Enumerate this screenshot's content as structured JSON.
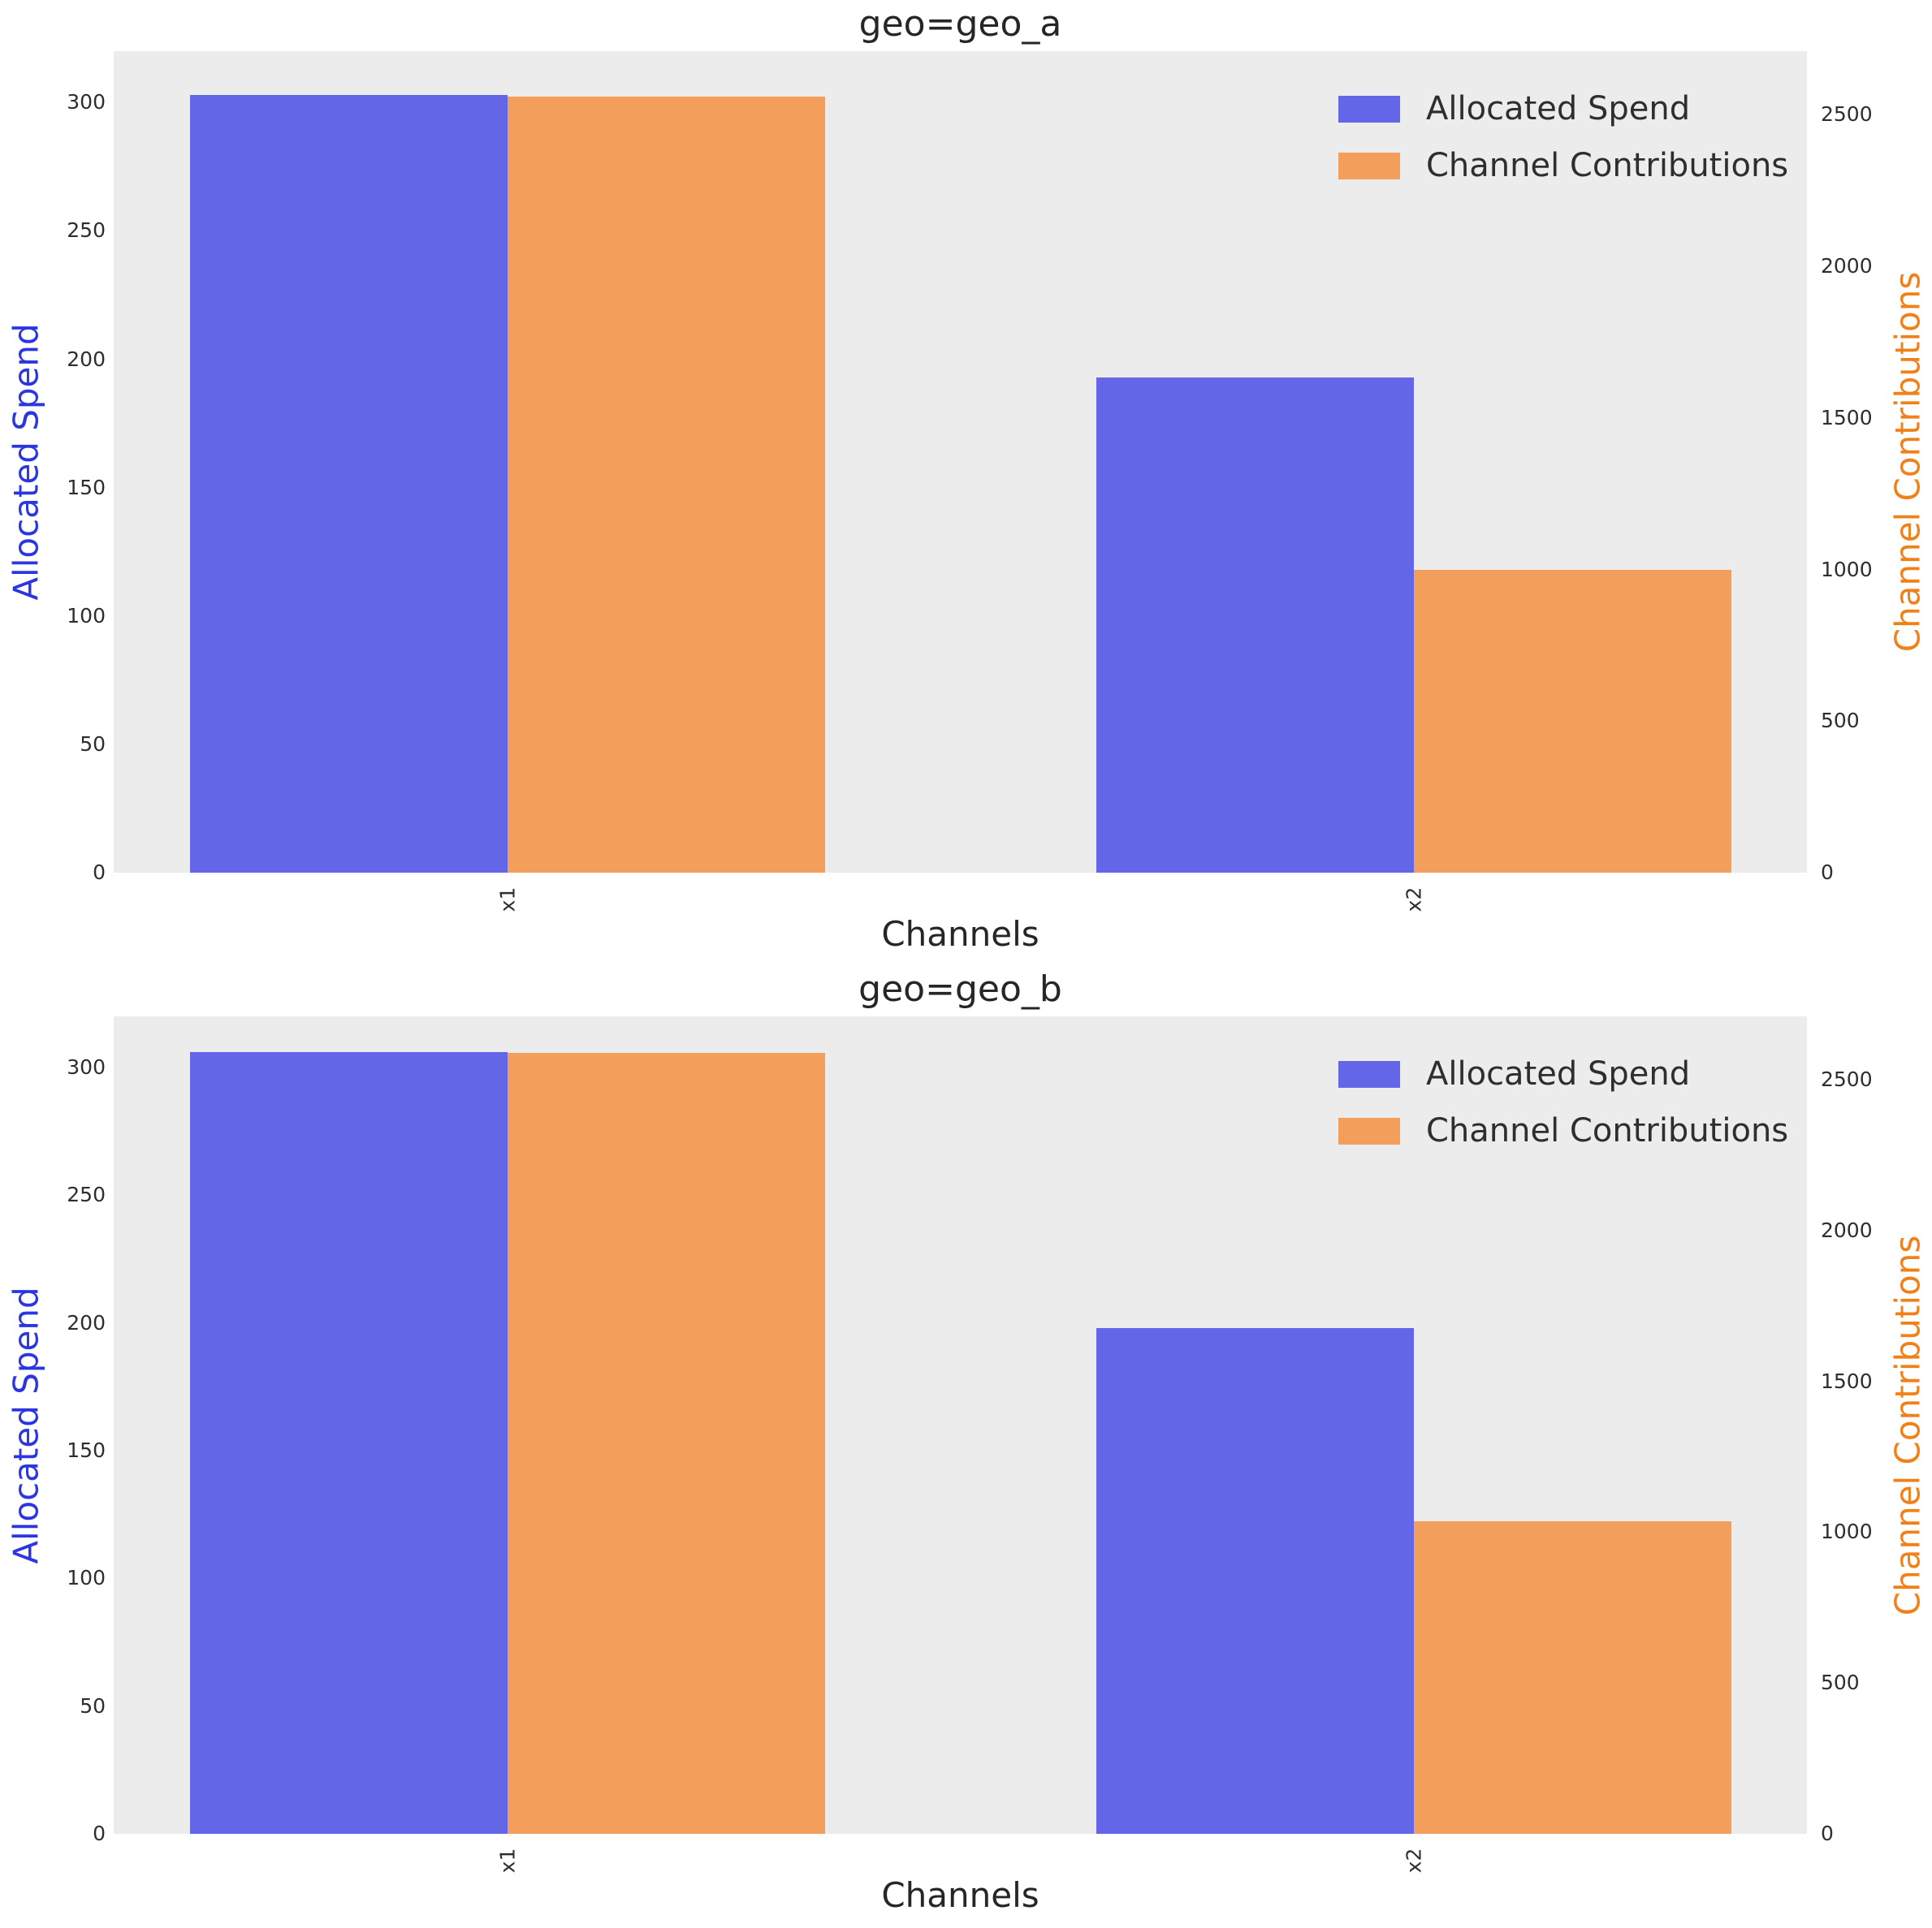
{
  "style": {
    "bar_spend_color": "#6266e7",
    "bar_contrib_color": "#f49e5c",
    "left_axis_label_color": "#2b36e0",
    "right_axis_label_color": "#f28019",
    "plot_background": "#ececec",
    "text_color": "#262626",
    "tick_color": "#2e2e2e"
  },
  "chart_data": [
    {
      "type": "bar",
      "title": "geo=geo_a",
      "xlabel": "Channels",
      "categories": [
        "x1",
        "x2"
      ],
      "series": [
        {
          "name": "Allocated Spend",
          "axis": "left",
          "values": [
            303,
            193
          ]
        },
        {
          "name": "Channel Contributions",
          "axis": "right",
          "values": [
            2560,
            1000
          ]
        }
      ],
      "left_ylabel": "Allocated Spend",
      "right_ylabel": "Channel Contributions",
      "left_ylim": [
        0,
        320
      ],
      "right_ylim": [
        0,
        2710
      ],
      "left_ticks": [
        0,
        50,
        100,
        150,
        200,
        250,
        300
      ],
      "right_ticks": [
        0,
        500,
        1000,
        1500,
        2000,
        2500
      ],
      "legend": [
        "Allocated Spend",
        "Channel Contributions"
      ],
      "legend_position": "upper right",
      "grid": false
    },
    {
      "type": "bar",
      "title": "geo=geo_b",
      "xlabel": "Channels",
      "categories": [
        "x1",
        "x2"
      ],
      "series": [
        {
          "name": "Allocated Spend",
          "axis": "left",
          "values": [
            306,
            198
          ]
        },
        {
          "name": "Channel Contributions",
          "axis": "right",
          "values": [
            2590,
            1035
          ]
        }
      ],
      "left_ylabel": "Allocated Spend",
      "right_ylabel": "Channel Contributions",
      "left_ylim": [
        0,
        320
      ],
      "right_ylim": [
        0,
        2710
      ],
      "left_ticks": [
        0,
        50,
        100,
        150,
        200,
        250,
        300
      ],
      "right_ticks": [
        0,
        500,
        1000,
        1500,
        2000,
        2500
      ],
      "legend": [
        "Allocated Spend",
        "Channel Contributions"
      ],
      "legend_position": "upper right",
      "grid": false
    }
  ]
}
